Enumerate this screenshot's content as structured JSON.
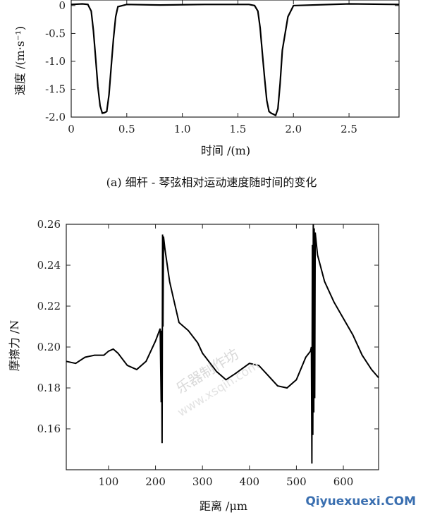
{
  "chart_data": [
    {
      "type": "line",
      "xlabel": "时间 /(m)",
      "ylabel": "速度 /(m·s⁻¹)",
      "caption": "(a) 细杆 - 琴弦相对运动速度随时间的变化",
      "xlim": [
        0,
        2.95
      ],
      "ylim": [
        -2.0,
        0.1
      ],
      "xticks": [
        "0",
        "0.5",
        "1.0",
        "1.5",
        "2.0",
        "2.5"
      ],
      "yticks": [
        "0",
        "-0.5",
        "-1.0",
        "-1.5",
        "-2.0"
      ],
      "series": [
        {
          "x": [
            0,
            0.1,
            0.15,
            0.18,
            0.2,
            0.22,
            0.24,
            0.26,
            0.28,
            0.3,
            0.32,
            0.34,
            0.36,
            0.38,
            0.4,
            0.42,
            0.5,
            0.8,
            1.2,
            1.5,
            1.6,
            1.65,
            1.68,
            1.7,
            1.72,
            1.74,
            1.76,
            1.78,
            1.8,
            1.82,
            1.84,
            1.86,
            1.88,
            1.9,
            1.95,
            2.0,
            2.5,
            2.95
          ],
          "y": [
            0.02,
            0.03,
            0.02,
            -0.1,
            -0.45,
            -0.95,
            -1.45,
            -1.8,
            -1.93,
            -1.92,
            -1.9,
            -1.6,
            -1.1,
            -0.6,
            -0.2,
            -0.02,
            0.02,
            0.01,
            0.02,
            0.02,
            0.02,
            0.0,
            -0.1,
            -0.4,
            -0.85,
            -1.3,
            -1.7,
            -1.9,
            -1.93,
            -1.95,
            -1.97,
            -1.85,
            -1.4,
            -0.8,
            -0.2,
            0.0,
            0.03,
            0.02
          ]
        }
      ]
    },
    {
      "type": "line",
      "xlabel": "距离 /μm",
      "ylabel": "摩擦力 /N",
      "xlim": [
        10,
        675
      ],
      "ylim": [
        0.14,
        0.26
      ],
      "xticks": [
        "100",
        "200",
        "300",
        "400",
        "500",
        "600"
      ],
      "yticks": [
        "0.26",
        "0.24",
        "0.22",
        "0.20",
        "0.18",
        "0.16"
      ],
      "series": [
        {
          "x": [
            10,
            30,
            50,
            70,
            90,
            100,
            110,
            120,
            140,
            160,
            180,
            200,
            210,
            212,
            213,
            214,
            215,
            216,
            217,
            218,
            220,
            230,
            240,
            250,
            270,
            290,
            300,
            330,
            350,
            370,
            400,
            420,
            440,
            460,
            480,
            500,
            520,
            530,
            532,
            533,
            534,
            535,
            536,
            537,
            538,
            539,
            540,
            545,
            560,
            580,
            600,
            620,
            640,
            660,
            675
          ],
          "y": [
            0.193,
            0.192,
            0.195,
            0.196,
            0.196,
            0.198,
            0.199,
            0.197,
            0.191,
            0.189,
            0.193,
            0.203,
            0.209,
            0.173,
            0.208,
            0.153,
            0.255,
            0.21,
            0.254,
            0.252,
            0.248,
            0.232,
            0.222,
            0.212,
            0.208,
            0.202,
            0.197,
            0.188,
            0.184,
            0.187,
            0.192,
            0.191,
            0.186,
            0.181,
            0.18,
            0.184,
            0.195,
            0.198,
            0.2,
            0.143,
            0.25,
            0.157,
            0.26,
            0.168,
            0.258,
            0.175,
            0.256,
            0.245,
            0.232,
            0.222,
            0.214,
            0.206,
            0.196,
            0.189,
            0.185
          ]
        }
      ]
    }
  ],
  "watermark": {
    "line1": "乐器制作坊",
    "line2": "www.xsqin.com",
    "brand": "Qiyuexuexi.COM"
  },
  "colors": {
    "line": "#000000",
    "axis": "#222222",
    "watermark": "#d9d9d9",
    "brand_q": "#e24a4a",
    "brand_text": "#3a6fb0"
  }
}
